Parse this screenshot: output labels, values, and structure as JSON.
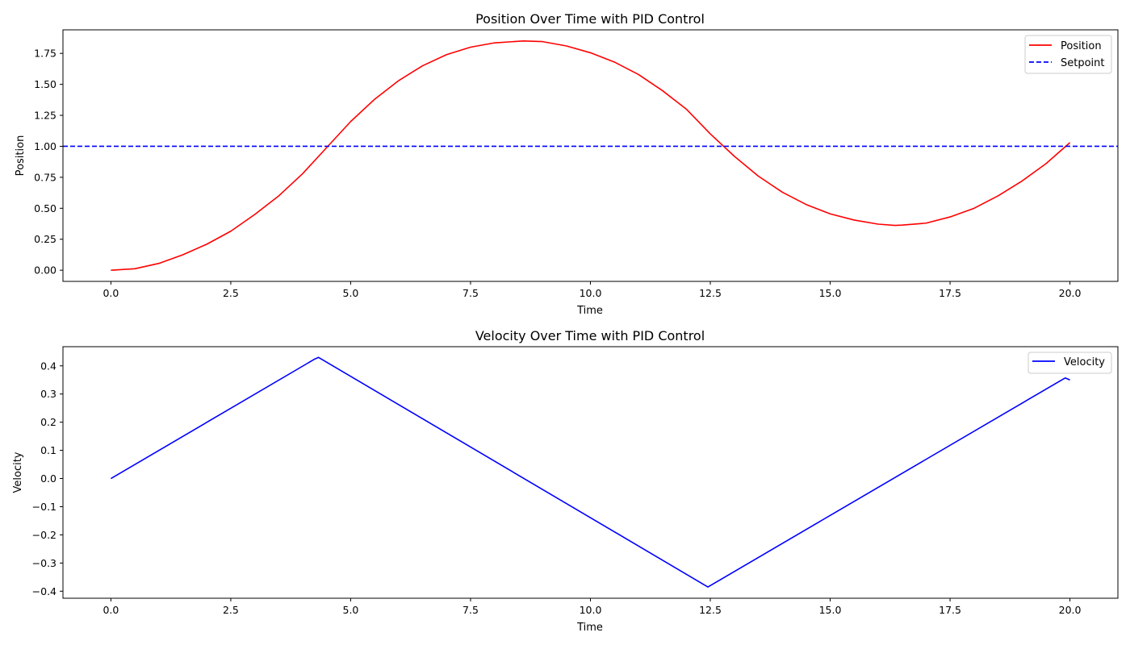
{
  "chart_data": [
    {
      "type": "line",
      "title": "Position Over Time with PID Control",
      "xlabel": "Time",
      "ylabel": "Position",
      "xlim": [
        -1.0,
        21.0
      ],
      "ylim": [
        -0.09,
        1.94
      ],
      "xticks": [
        0.0,
        2.5,
        5.0,
        7.5,
        10.0,
        12.5,
        15.0,
        17.5,
        20.0
      ],
      "xtick_labels": [
        "0.0",
        "2.5",
        "5.0",
        "7.5",
        "10.0",
        "12.5",
        "15.0",
        "17.5",
        "20.0"
      ],
      "yticks": [
        0.0,
        0.25,
        0.5,
        0.75,
        1.0,
        1.25,
        1.5,
        1.75
      ],
      "ytick_labels": [
        "0.00",
        "0.25",
        "0.50",
        "0.75",
        "1.00",
        "1.25",
        "1.50",
        "1.75"
      ],
      "grid": false,
      "legend_position": "top-right",
      "series": [
        {
          "name": "Position",
          "color": "#ff0000",
          "style": "solid",
          "x": [
            0,
            0.5,
            1.0,
            1.5,
            2.0,
            2.5,
            3.0,
            3.5,
            4.0,
            4.5,
            5.0,
            5.5,
            6.0,
            6.5,
            7.0,
            7.5,
            8.0,
            8.6,
            9.0,
            9.5,
            10.0,
            10.5,
            11.0,
            11.5,
            12.0,
            12.5,
            13.0,
            13.5,
            14.0,
            14.5,
            15.0,
            15.5,
            16.0,
            16.35,
            16.5,
            17.0,
            17.5,
            18.0,
            18.5,
            19.0,
            19.5,
            20.0
          ],
          "y": [
            0.0,
            0.012,
            0.055,
            0.125,
            0.21,
            0.315,
            0.45,
            0.6,
            0.78,
            0.99,
            1.2,
            1.38,
            1.53,
            1.65,
            1.74,
            1.8,
            1.835,
            1.85,
            1.845,
            1.81,
            1.755,
            1.68,
            1.58,
            1.45,
            1.3,
            1.1,
            0.92,
            0.76,
            0.63,
            0.53,
            0.455,
            0.405,
            0.372,
            0.362,
            0.364,
            0.38,
            0.43,
            0.5,
            0.6,
            0.72,
            0.86,
            1.03
          ]
        },
        {
          "name": "Setpoint",
          "color": "#0000ff",
          "style": "dashed",
          "x": [
            -1.0,
            21.0
          ],
          "y": [
            1.0,
            1.0
          ]
        }
      ]
    },
    {
      "type": "line",
      "title": "Velocity Over Time with PID Control",
      "xlabel": "Time",
      "ylabel": "Velocity",
      "xlim": [
        -1.0,
        21.0
      ],
      "ylim": [
        -0.425,
        0.468
      ],
      "xticks": [
        0.0,
        2.5,
        5.0,
        7.5,
        10.0,
        12.5,
        15.0,
        17.5,
        20.0
      ],
      "xtick_labels": [
        "0.0",
        "2.5",
        "5.0",
        "7.5",
        "10.0",
        "12.5",
        "15.0",
        "17.5",
        "20.0"
      ],
      "yticks": [
        -0.4,
        -0.3,
        -0.2,
        -0.1,
        0.0,
        0.1,
        0.2,
        0.3,
        0.4
      ],
      "ytick_labels": [
        "−0.4",
        "−0.3",
        "−0.2",
        "−0.1",
        "0.0",
        "0.1",
        "0.2",
        "0.3",
        "0.4"
      ],
      "grid": false,
      "legend_position": "top-right",
      "series": [
        {
          "name": "Velocity",
          "color": "#0000ff",
          "style": "solid",
          "x": [
            0,
            4.25,
            4.33,
            12.45,
            19.9,
            20.0
          ],
          "y": [
            0.0,
            0.424,
            0.43,
            -0.385,
            0.357,
            0.35
          ]
        }
      ]
    }
  ]
}
